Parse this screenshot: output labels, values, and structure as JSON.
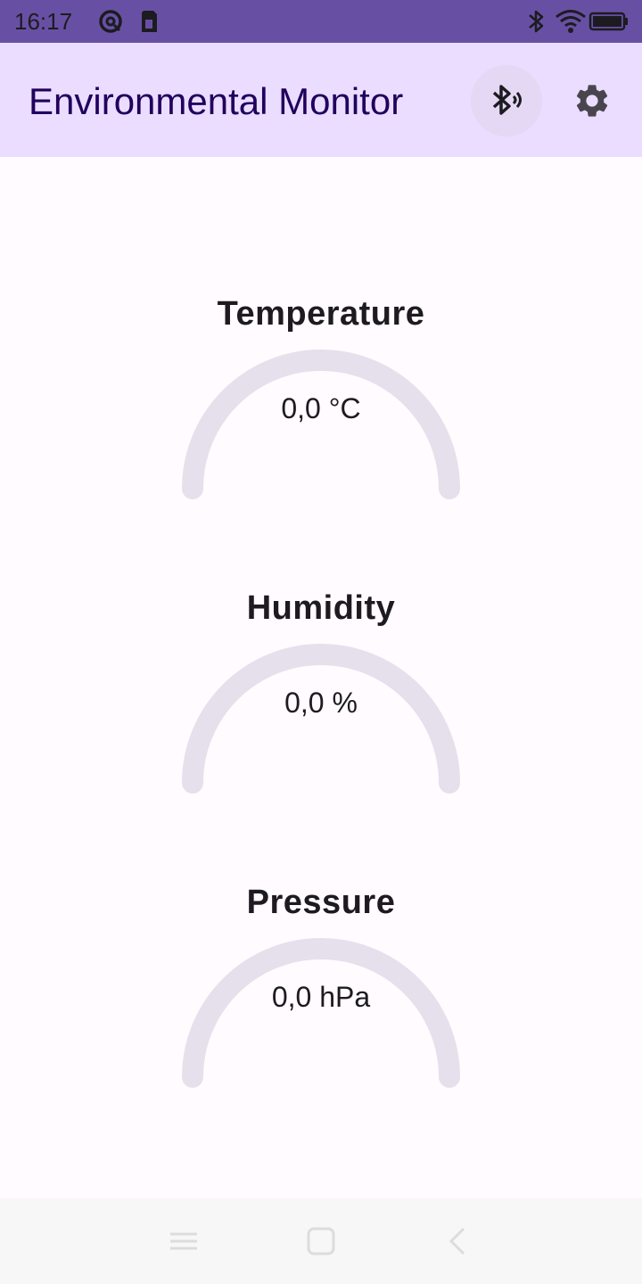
{
  "status_bar": {
    "time": "16:17",
    "icons": [
      "at-sign-icon",
      "sim-card-icon",
      "bluetooth-icon",
      "wifi-icon",
      "battery-icon"
    ]
  },
  "app_bar": {
    "title": "Environmental Monitor",
    "actions": [
      "bluetooth-connect-icon",
      "gear-icon"
    ]
  },
  "gauges": [
    {
      "label": "Temperature",
      "value": "0,0 °C",
      "level": 0
    },
    {
      "label": "Humidity",
      "value": "0,0 %",
      "level": 0
    },
    {
      "label": "Pressure",
      "value": "0,0 hPa",
      "level": 0
    }
  ],
  "colors": {
    "status_bar": "#6750a4",
    "app_bar": "#eaddff",
    "title_text": "#21005d",
    "gauge_track": "#e6e0ec",
    "background": "#fffbfe"
  },
  "nav_bar": {
    "icons": [
      "menu-icon",
      "home-icon",
      "back-icon"
    ]
  }
}
